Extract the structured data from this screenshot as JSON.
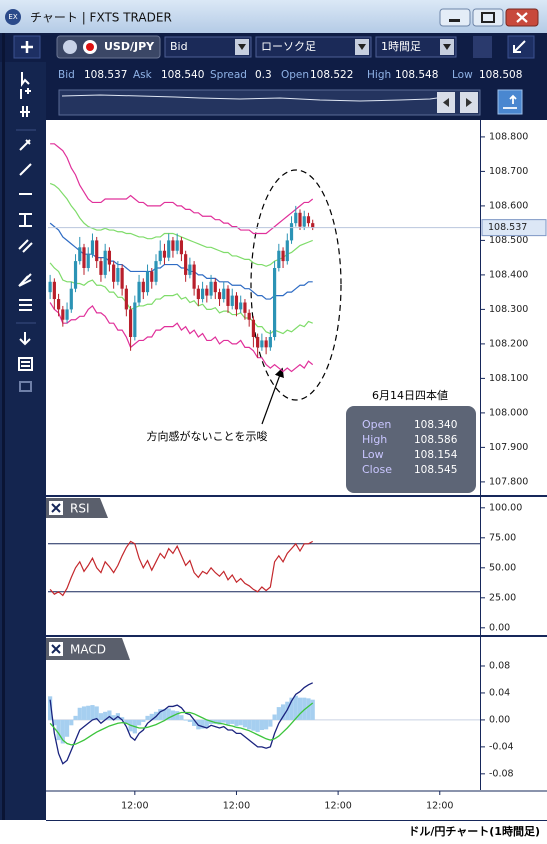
{
  "window": {
    "title": "チャート | FXTS TRADER"
  },
  "toolbar": {
    "symbol": "USD/JPY",
    "price_type": "Bid",
    "chart_type": "ローソク足",
    "timeframe": "1時間足"
  },
  "quote": [
    {
      "label": "Bid",
      "value": "108.537"
    },
    {
      "label": "Ask",
      "value": "108.540"
    },
    {
      "label": "Spread",
      "value": "0.3"
    },
    {
      "label": "Open",
      "value": "108.522"
    },
    {
      "label": "High",
      "value": "108.548"
    },
    {
      "label": "Low",
      "value": "108.508"
    }
  ],
  "chart_data": [
    {
      "type": "candlestick",
      "up_color": "#2b93b5",
      "down_color": "#b81f2b",
      "open": [
        108.35,
        108.38,
        108.33,
        108.3,
        108.27,
        108.3,
        108.36,
        108.44,
        108.48,
        108.42,
        108.46,
        108.5,
        108.44,
        108.4,
        108.47,
        108.43,
        108.38,
        108.42,
        108.36,
        108.3,
        108.22,
        108.32,
        108.38,
        108.35,
        108.41,
        108.38,
        108.44,
        108.47,
        108.45,
        108.5,
        108.47,
        108.5,
        108.46,
        108.4,
        108.43,
        108.36,
        108.33,
        108.36,
        108.34,
        108.38,
        108.35,
        108.33,
        108.36,
        108.31,
        108.34,
        108.3,
        108.32,
        108.29,
        108.27,
        108.22,
        108.19,
        108.21,
        108.19,
        108.22,
        108.42,
        108.47,
        108.44,
        108.5,
        108.55,
        108.58,
        108.54,
        108.57,
        108.55
      ],
      "high": [
        108.4,
        108.39,
        108.345,
        108.31,
        108.32,
        108.38,
        108.46,
        108.51,
        108.49,
        108.48,
        108.52,
        108.51,
        108.45,
        108.49,
        108.48,
        108.44,
        108.44,
        108.43,
        108.37,
        108.31,
        108.34,
        108.4,
        108.39,
        108.43,
        108.42,
        108.46,
        108.5,
        108.49,
        108.52,
        108.51,
        108.52,
        108.51,
        108.47,
        108.45,
        108.44,
        108.37,
        108.38,
        108.37,
        108.4,
        108.39,
        108.36,
        108.38,
        108.37,
        108.36,
        108.35,
        108.34,
        108.33,
        108.3,
        108.28,
        108.23,
        108.23,
        108.22,
        108.24,
        108.44,
        108.49,
        108.48,
        108.52,
        108.57,
        108.6,
        108.59,
        108.586,
        108.58,
        108.56
      ],
      "low": [
        108.33,
        108.3,
        108.28,
        108.25,
        108.26,
        108.29,
        108.35,
        108.43,
        108.4,
        108.41,
        108.45,
        108.42,
        108.38,
        108.39,
        108.41,
        108.36,
        108.37,
        108.34,
        108.28,
        108.18,
        108.21,
        108.31,
        108.33,
        108.34,
        108.36,
        108.37,
        108.43,
        108.43,
        108.44,
        108.45,
        108.46,
        108.44,
        108.38,
        108.39,
        108.34,
        108.31,
        108.32,
        108.32,
        108.33,
        108.33,
        108.31,
        108.32,
        108.29,
        108.3,
        108.28,
        108.29,
        108.27,
        108.25,
        108.19,
        108.16,
        108.18,
        108.17,
        108.18,
        108.21,
        108.41,
        108.42,
        108.43,
        108.49,
        108.54,
        108.53,
        108.53,
        108.54,
        108.53
      ],
      "close": [
        108.38,
        108.33,
        108.3,
        108.27,
        108.3,
        108.36,
        108.44,
        108.48,
        108.42,
        108.46,
        108.5,
        108.44,
        108.4,
        108.47,
        108.43,
        108.38,
        108.42,
        108.36,
        108.3,
        108.22,
        108.32,
        108.38,
        108.35,
        108.41,
        108.38,
        108.44,
        108.47,
        108.45,
        108.5,
        108.47,
        108.5,
        108.46,
        108.4,
        108.43,
        108.36,
        108.33,
        108.36,
        108.34,
        108.38,
        108.35,
        108.33,
        108.36,
        108.31,
        108.34,
        108.3,
        108.32,
        108.29,
        108.27,
        108.22,
        108.19,
        108.21,
        108.19,
        108.22,
        108.42,
        108.47,
        108.44,
        108.5,
        108.55,
        108.58,
        108.54,
        108.57,
        108.55,
        108.537
      ],
      "bands": [
        {
          "color": "#e0309a",
          "values": [
            108.78,
            108.78,
            108.77,
            108.76,
            108.74,
            108.71,
            108.69,
            108.66,
            108.64,
            108.62,
            108.61,
            108.61,
            108.61,
            108.62,
            108.62,
            108.62,
            108.62,
            108.62,
            108.62,
            108.63,
            108.62,
            108.61,
            108.61,
            108.6,
            108.6,
            108.6,
            108.6,
            108.61,
            108.61,
            108.61,
            108.6,
            108.6,
            108.59,
            108.59,
            108.58,
            108.58,
            108.57,
            108.57,
            108.57,
            108.56,
            108.56,
            108.55,
            108.55,
            108.54,
            108.54,
            108.53,
            108.53,
            108.53,
            108.52,
            108.52,
            108.52,
            108.52,
            108.53,
            108.54,
            108.55,
            108.56,
            108.57,
            108.58,
            108.59,
            108.6,
            108.61,
            108.61,
            108.62
          ]
        },
        {
          "color": "#7fdc6a",
          "values": [
            108.665,
            108.66,
            108.65,
            108.635,
            108.62,
            108.6,
            108.585,
            108.565,
            108.55,
            108.54,
            108.535,
            108.53,
            108.53,
            108.535,
            108.53,
            108.53,
            108.525,
            108.525,
            108.52,
            108.52,
            108.515,
            108.51,
            108.51,
            108.505,
            108.505,
            108.51,
            108.51,
            108.52,
            108.52,
            108.52,
            108.515,
            108.51,
            108.505,
            108.5,
            108.495,
            108.49,
            108.485,
            108.48,
            108.48,
            108.475,
            108.47,
            108.465,
            108.465,
            108.455,
            108.455,
            108.45,
            108.445,
            108.445,
            108.435,
            108.43,
            108.43,
            108.425,
            108.43,
            108.44,
            108.445,
            108.45,
            108.46,
            108.465,
            108.475,
            108.485,
            108.49,
            108.495,
            108.5
          ]
        },
        {
          "color": "#2f6cc4",
          "values": [
            108.55,
            108.54,
            108.53,
            108.51,
            108.5,
            108.49,
            108.48,
            108.47,
            108.46,
            108.46,
            108.46,
            108.45,
            108.45,
            108.45,
            108.44,
            108.44,
            108.43,
            108.43,
            108.42,
            108.41,
            108.41,
            108.41,
            108.41,
            108.41,
            108.41,
            108.42,
            108.42,
            108.43,
            108.43,
            108.43,
            108.43,
            108.42,
            108.42,
            108.41,
            108.41,
            108.4,
            108.4,
            108.39,
            108.39,
            108.39,
            108.38,
            108.38,
            108.38,
            108.37,
            108.37,
            108.37,
            108.36,
            108.36,
            108.35,
            108.34,
            108.34,
            108.33,
            108.33,
            108.34,
            108.34,
            108.34,
            108.35,
            108.35,
            108.36,
            108.37,
            108.37,
            108.38,
            108.38
          ]
        },
        {
          "color": "#7fdc6a",
          "values": [
            108.435,
            108.42,
            108.41,
            108.385,
            108.38,
            108.38,
            108.375,
            108.375,
            108.37,
            108.38,
            108.385,
            108.37,
            108.37,
            108.365,
            108.35,
            108.35,
            108.335,
            108.335,
            108.32,
            108.3,
            108.305,
            108.31,
            108.31,
            108.315,
            108.315,
            108.33,
            108.33,
            108.34,
            108.34,
            108.34,
            108.345,
            108.33,
            108.335,
            108.32,
            108.325,
            108.31,
            108.315,
            108.3,
            108.3,
            108.305,
            108.29,
            108.295,
            108.295,
            108.285,
            108.285,
            108.29,
            108.275,
            108.275,
            108.265,
            108.25,
            108.25,
            108.235,
            108.23,
            108.24,
            108.235,
            108.23,
            108.24,
            108.235,
            108.245,
            108.255,
            108.25,
            108.265,
            108.26
          ]
        },
        {
          "color": "#e0309a",
          "values": [
            108.32,
            108.3,
            108.29,
            108.26,
            108.26,
            108.27,
            108.27,
            108.28,
            108.28,
            108.3,
            108.31,
            108.29,
            108.29,
            108.28,
            108.26,
            108.26,
            108.24,
            108.24,
            108.22,
            108.19,
            108.2,
            108.21,
            108.21,
            108.22,
            108.22,
            108.24,
            108.24,
            108.25,
            108.25,
            108.25,
            108.26,
            108.24,
            108.25,
            108.23,
            108.24,
            108.22,
            108.23,
            108.21,
            108.21,
            108.22,
            108.2,
            108.21,
            108.21,
            108.2,
            108.2,
            108.21,
            108.19,
            108.19,
            108.18,
            108.16,
            108.16,
            108.14,
            108.13,
            108.14,
            108.13,
            108.12,
            108.13,
            108.12,
            108.13,
            108.14,
            108.13,
            108.15,
            108.14
          ]
        }
      ],
      "xlim": [
        -0.5,
        101.5
      ],
      "xticks": [
        {
          "value": 20,
          "label": "12:00"
        },
        {
          "value": 44,
          "label": "12:00"
        },
        {
          "value": 68,
          "label": "12:00"
        },
        {
          "value": 92,
          "label": "12:00"
        }
      ],
      "ylim": [
        107.762,
        108.849
      ],
      "yticks": [
        {
          "value": 107.8,
          "label": "107.800"
        },
        {
          "value": 107.9,
          "label": "107.900"
        },
        {
          "value": 108.0,
          "label": "108.000"
        },
        {
          "value": 108.1,
          "label": "108.100"
        },
        {
          "value": 108.2,
          "label": "108.200"
        },
        {
          "value": 108.3,
          "label": "108.300"
        },
        {
          "value": 108.4,
          "label": "108.400"
        },
        {
          "value": 108.5,
          "label": "108.500"
        },
        {
          "value": 108.6,
          "label": "108.600"
        },
        {
          "value": 108.7,
          "label": "108.700"
        },
        {
          "value": 108.8,
          "label": "108.800"
        }
      ],
      "annotation": "方向感がないことを示唆",
      "info_box": {
        "title": "6月14日四本値",
        "rows": [
          {
            "label": "Open",
            "value": "108.340"
          },
          {
            "label": "High",
            "value": "108.586"
          },
          {
            "label": "Low",
            "value": "108.154"
          },
          {
            "label": "Close",
            "value": "108.545"
          }
        ]
      }
    },
    {
      "type": "line",
      "title": "RSI",
      "series": [
        {
          "color": "#c4282d",
          "values": [
            32,
            28,
            30,
            27,
            33,
            42,
            50,
            55,
            47,
            52,
            58,
            50,
            46,
            55,
            51,
            46,
            52,
            60,
            67,
            72,
            70,
            58,
            50,
            56,
            48,
            55,
            62,
            58,
            66,
            62,
            68,
            60,
            52,
            56,
            46,
            42,
            47,
            45,
            50,
            46,
            43,
            47,
            40,
            44,
            38,
            41,
            37,
            35,
            32,
            30,
            34,
            31,
            34,
            55,
            60,
            55,
            62,
            66,
            70,
            64,
            70,
            70,
            72
          ]
        }
      ],
      "levels": [
        70,
        30
      ],
      "ylim": [
        -6,
        109
      ],
      "yticks": [
        {
          "value": 100,
          "label": "100.00"
        },
        {
          "value": 75,
          "label": "75.00"
        },
        {
          "value": 50,
          "label": "50.00"
        },
        {
          "value": 25,
          "label": "25.00"
        },
        {
          "value": 0,
          "label": "0.00"
        }
      ]
    },
    {
      "type": "combo",
      "title": "MACD",
      "series": [
        {
          "type": "bar",
          "color": "#a6cff0",
          "values": [
            0.035,
            -0.008,
            -0.03,
            -0.035,
            -0.025,
            -0.008,
            0.006,
            0.018,
            0.02,
            0.021,
            0.022,
            0.02,
            0.01,
            0.012,
            0.014,
            0.007,
            0.01,
            0.004,
            -0.005,
            -0.017,
            -0.02,
            -0.008,
            -0.003,
            0.006,
            0.009,
            0.012,
            0.016,
            0.016,
            0.017,
            0.014,
            0.013,
            0.007,
            -0.001,
            -0.003,
            -0.009,
            -0.014,
            -0.013,
            -0.012,
            -0.006,
            -0.006,
            -0.007,
            -0.004,
            -0.007,
            -0.006,
            -0.009,
            -0.008,
            -0.011,
            -0.014,
            -0.016,
            -0.018,
            -0.015,
            -0.014,
            -0.01,
            0.008,
            0.019,
            0.023,
            0.027,
            0.033,
            0.036,
            0.033,
            0.033,
            0.032,
            0.03
          ]
        },
        {
          "type": "line",
          "color": "#1a237e",
          "values": [
            0.03,
            -0.02,
            -0.05,
            -0.065,
            -0.06,
            -0.045,
            -0.03,
            -0.015,
            -0.01,
            -0.005,
            0.0,
            0.002,
            -0.005,
            0.0,
            0.005,
            0.0,
            0.005,
            0.0,
            -0.01,
            -0.025,
            -0.03,
            -0.02,
            -0.015,
            -0.005,
            0.0,
            0.005,
            0.012,
            0.015,
            0.02,
            0.02,
            0.022,
            0.018,
            0.01,
            0.008,
            0.0,
            -0.008,
            -0.01,
            -0.012,
            -0.008,
            -0.01,
            -0.012,
            -0.01,
            -0.015,
            -0.015,
            -0.02,
            -0.02,
            -0.025,
            -0.03,
            -0.035,
            -0.04,
            -0.04,
            -0.042,
            -0.04,
            -0.02,
            -0.005,
            0.005,
            0.015,
            0.028,
            0.038,
            0.042,
            0.048,
            0.052,
            0.055
          ]
        },
        {
          "type": "line",
          "color": "#3cc43c",
          "values": [
            -0.005,
            -0.012,
            -0.02,
            -0.03,
            -0.035,
            -0.037,
            -0.036,
            -0.033,
            -0.03,
            -0.026,
            -0.022,
            -0.018,
            -0.015,
            -0.012,
            -0.009,
            -0.007,
            -0.005,
            -0.004,
            -0.005,
            -0.008,
            -0.01,
            -0.012,
            -0.012,
            -0.011,
            -0.009,
            -0.007,
            -0.004,
            -0.001,
            0.003,
            0.006,
            0.009,
            0.011,
            0.011,
            0.011,
            0.009,
            0.006,
            0.003,
            0.0,
            -0.002,
            -0.004,
            -0.005,
            -0.006,
            -0.008,
            -0.009,
            -0.011,
            -0.012,
            -0.014,
            -0.016,
            -0.019,
            -0.022,
            -0.025,
            -0.028,
            -0.03,
            -0.028,
            -0.024,
            -0.018,
            -0.012,
            -0.005,
            0.002,
            0.009,
            0.015,
            0.02,
            0.025
          ]
        }
      ],
      "ylim": [
        -0.104,
        0.123
      ],
      "yticks": [
        0.08,
        0.04,
        {
          "value": 0,
          "label": "0.00"
        },
        -0.04,
        -0.08
      ]
    }
  ],
  "caption": "ドル/円チャート(1時間足)"
}
